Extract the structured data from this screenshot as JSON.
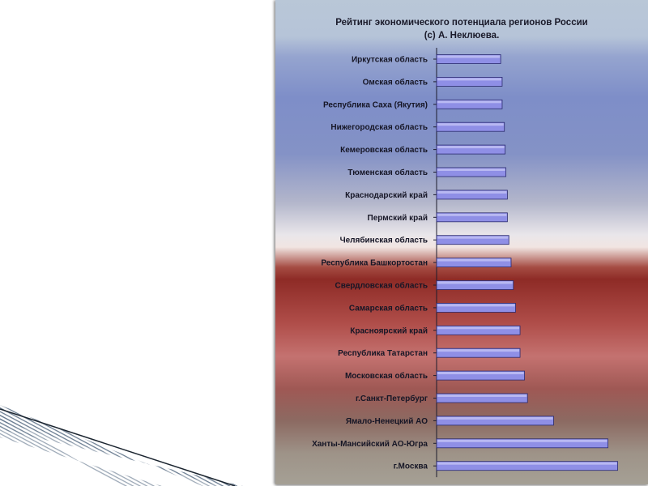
{
  "chart_data": {
    "type": "bar",
    "orientation": "horizontal",
    "title": "Рейтинг экономического потенциала регионов России",
    "subtitle": "(c) А. Неклюева.",
    "categories": [
      "Иркутская область",
      "Омская область",
      "Республика Саха (Якутия)",
      "Нижегородская область",
      "Кемеровская область",
      "Тюменская область",
      "Краснодарский край",
      "Пермский край",
      "Челябинская область",
      "Республика Башкортостан",
      "Свердловская область",
      "Самарская область",
      "Красноярский край",
      "Республика Татарстан",
      "Московская область",
      "г.Санкт-Петербург",
      "Ямало-Ненецкий АО",
      "Ханты-Мансийский АО-Югра",
      "г.Москва"
    ],
    "values": [
      0.86,
      0.88,
      0.88,
      0.91,
      0.92,
      0.93,
      0.95,
      0.95,
      0.97,
      1.0,
      1.03,
      1.06,
      1.12,
      1.12,
      1.18,
      1.22,
      1.57,
      2.3,
      2.43
    ],
    "xlim": [
      0,
      2.5
    ],
    "grid": false,
    "legend": "none",
    "bar_color": "#8f8fe6",
    "bar_edge_color": "#2a2a6e"
  }
}
